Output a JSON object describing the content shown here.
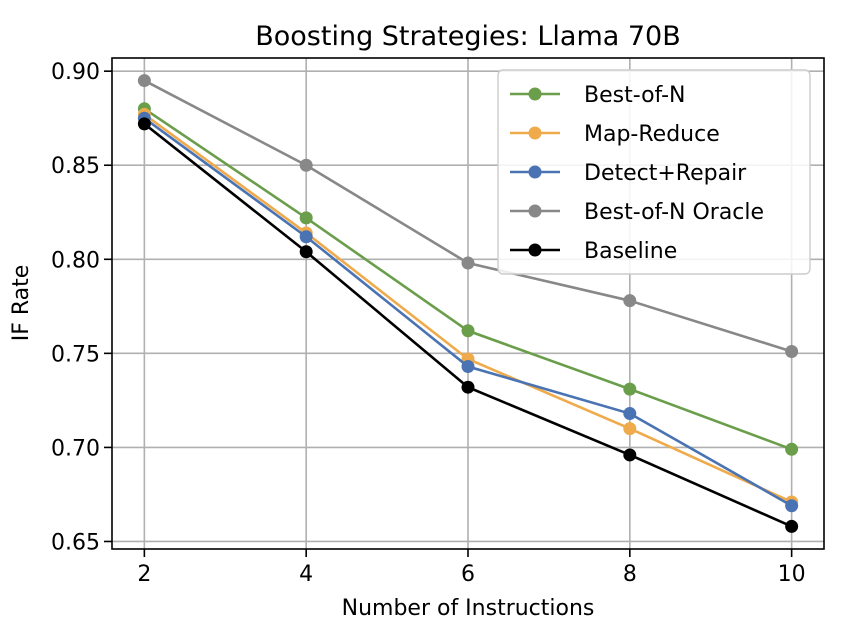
{
  "chart_data": {
    "type": "line",
    "title": "Boosting Strategies: Llama 70B",
    "xlabel": "Number of Instructions",
    "ylabel": "IF Rate",
    "x": [
      2,
      4,
      6,
      8,
      10
    ],
    "xlim": [
      1.6,
      10.4
    ],
    "ylim": [
      0.646,
      0.907
    ],
    "xticks": [
      2,
      4,
      6,
      8,
      10
    ],
    "yticks": [
      0.65,
      0.7,
      0.75,
      0.8,
      0.85,
      0.9
    ],
    "ytick_labels": [
      "0.65",
      "0.70",
      "0.75",
      "0.80",
      "0.85",
      "0.90"
    ],
    "grid": true,
    "legend_position": "top-right",
    "series": [
      {
        "name": "Best-of-N",
        "color": "#6a9e4a",
        "values": [
          0.88,
          0.822,
          0.762,
          0.731,
          0.699
        ]
      },
      {
        "name": "Map-Reduce",
        "color": "#efaa4c",
        "values": [
          0.877,
          0.814,
          0.747,
          0.71,
          0.671
        ]
      },
      {
        "name": "Detect+Repair",
        "color": "#4a73b4",
        "values": [
          0.875,
          0.812,
          0.743,
          0.718,
          0.669
        ]
      },
      {
        "name": "Best-of-N Oracle",
        "color": "#888888",
        "values": [
          0.895,
          0.85,
          0.798,
          0.778,
          0.751
        ]
      },
      {
        "name": "Baseline",
        "color": "#000000",
        "values": [
          0.872,
          0.804,
          0.732,
          0.696,
          0.658
        ]
      }
    ]
  }
}
